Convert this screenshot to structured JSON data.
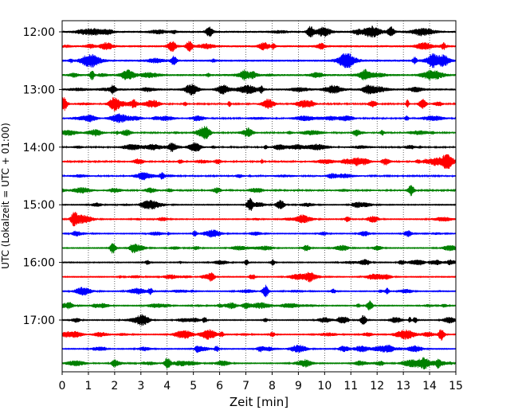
{
  "chart_data": {
    "type": "line",
    "title": "",
    "xlabel": "Zeit  [min]",
    "ylabel": "UTC (Lokalzeit = UTC + 01:00)",
    "xlim": [
      0,
      15
    ],
    "x_ticks": [
      "0",
      "1",
      "2",
      "3",
      "4",
      "5",
      "6",
      "7",
      "8",
      "9",
      "10",
      "11",
      "12",
      "13",
      "14",
      "15"
    ],
    "y_ticks": [
      "12:00",
      "13:00",
      "14:00",
      "15:00",
      "16:00",
      "17:00"
    ],
    "grid": "vertical-dotted",
    "trace_interval_minutes": 15,
    "trace_colors": [
      "#000000",
      "#ff0000",
      "#0000ff",
      "#008000"
    ],
    "series": [
      {
        "start": "12:00",
        "color": "#000000"
      },
      {
        "start": "12:15",
        "color": "#ff0000"
      },
      {
        "start": "12:30",
        "color": "#0000ff"
      },
      {
        "start": "12:45",
        "color": "#008000"
      },
      {
        "start": "13:00",
        "color": "#000000"
      },
      {
        "start": "13:15",
        "color": "#ff0000"
      },
      {
        "start": "13:30",
        "color": "#0000ff"
      },
      {
        "start": "13:45",
        "color": "#008000"
      },
      {
        "start": "14:00",
        "color": "#000000"
      },
      {
        "start": "14:15",
        "color": "#ff0000"
      },
      {
        "start": "14:30",
        "color": "#0000ff"
      },
      {
        "start": "14:45",
        "color": "#008000"
      },
      {
        "start": "15:00",
        "color": "#000000"
      },
      {
        "start": "15:15",
        "color": "#ff0000"
      },
      {
        "start": "15:30",
        "color": "#0000ff"
      },
      {
        "start": "15:45",
        "color": "#008000"
      },
      {
        "start": "16:00",
        "color": "#000000"
      },
      {
        "start": "16:15",
        "color": "#ff0000"
      },
      {
        "start": "16:30",
        "color": "#0000ff"
      },
      {
        "start": "16:45",
        "color": "#008000"
      },
      {
        "start": "17:00",
        "color": "#000000"
      },
      {
        "start": "17:15",
        "color": "#ff0000"
      },
      {
        "start": "17:30",
        "color": "#0000ff"
      },
      {
        "start": "17:45",
        "color": "#008000"
      }
    ]
  }
}
